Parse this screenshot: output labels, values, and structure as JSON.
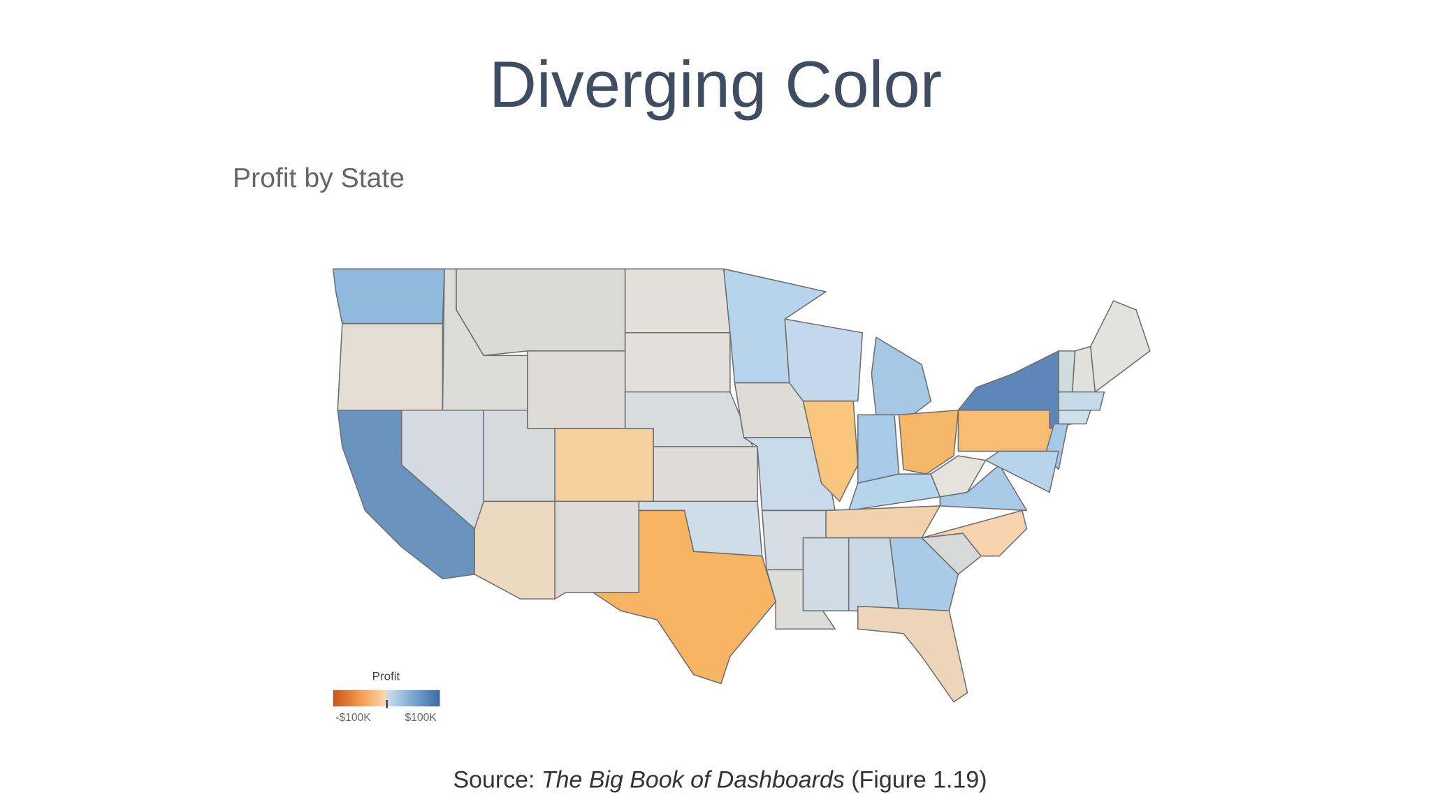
{
  "slide": {
    "title": "Diverging Color",
    "map": {
      "title": "Profit by State",
      "legend": {
        "title": "Profit",
        "min_label": "-$100K",
        "max_label": "$100K"
      }
    },
    "source": {
      "prefix": "Source: ",
      "book": "The Big Book of Dashboards",
      "suffix": " (Figure 1.19)"
    }
  }
}
